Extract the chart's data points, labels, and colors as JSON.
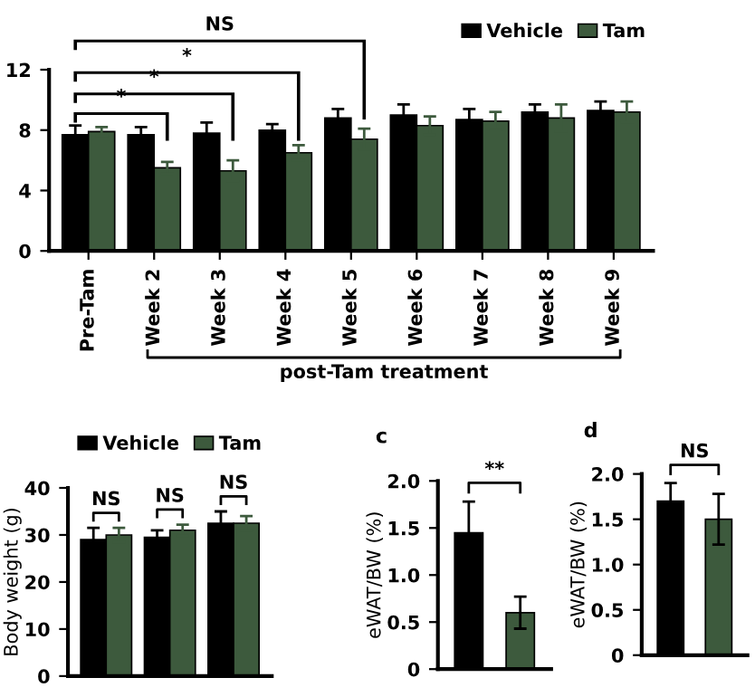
{
  "chart_data": [
    {
      "type": "bar",
      "categories": [
        "Pre-Tam",
        "Week 2",
        "Week 3",
        "Week 4",
        "Week 5",
        "Week 6",
        "Week 7",
        "Week 8",
        "Week 9"
      ],
      "series": [
        {
          "name": "Vehicle",
          "color": "#000000",
          "values": [
            7.7,
            7.7,
            7.8,
            8.0,
            8.8,
            9.0,
            8.7,
            9.2,
            9.3
          ],
          "errors": [
            0.6,
            0.5,
            0.7,
            0.4,
            0.6,
            0.7,
            0.7,
            0.5,
            0.6
          ]
        },
        {
          "name": "Tam",
          "color": "#3d5a3d",
          "values": [
            7.9,
            5.5,
            5.3,
            6.5,
            7.4,
            8.3,
            8.6,
            8.8,
            9.2
          ],
          "errors": [
            0.3,
            0.4,
            0.7,
            0.5,
            0.7,
            0.6,
            0.6,
            0.9,
            0.7
          ]
        }
      ],
      "ylim": [
        0,
        12
      ],
      "yticks": [
        0,
        4,
        8,
        12
      ],
      "legend": "top right",
      "grid": false,
      "annotations": [
        "NS",
        "*",
        "*",
        "*",
        "post-Tam treatment"
      ]
    },
    {
      "type": "bar",
      "categories": [
        null,
        null,
        null
      ],
      "ylabel": "Body weight (g)",
      "series": [
        {
          "name": "Vehicle",
          "color": "#000000",
          "values": [
            29,
            29.5,
            32.5
          ],
          "errors": [
            2.5,
            1.5,
            2.5
          ]
        },
        {
          "name": "Tam",
          "color": "#3d5a3d",
          "values": [
            30,
            31,
            32.5
          ],
          "errors": [
            1.5,
            1.2,
            1.5
          ]
        }
      ],
      "ylim": [
        0,
        40
      ],
      "yticks": [
        0,
        10,
        20,
        30,
        40
      ],
      "legend": "top",
      "tick_labels": "y",
      "grid": false,
      "annotations": [
        "NS",
        "NS",
        "NS"
      ]
    },
    {
      "type": "bar",
      "title": "c",
      "categories": [
        null,
        null
      ],
      "ylabel": "eWAT/BW (%)",
      "values": [
        1.45,
        0.6
      ],
      "colors": [
        "#000000",
        "#3d5a3d"
      ],
      "errors": [
        0.33,
        0.17
      ],
      "ylim": [
        0,
        2.0
      ],
      "yticks": [
        {
          "value": 0,
          "label": "0"
        },
        {
          "value": 0.5,
          "label": "0.5"
        },
        {
          "value": 1.0,
          "label": "1.0"
        },
        {
          "value": 1.5,
          "label": "1.5"
        },
        {
          "value": 2.0,
          "label": "2.0"
        }
      ],
      "tick_labels": "y",
      "grid": false,
      "annotations": [
        "**"
      ]
    },
    {
      "type": "bar",
      "title": "d",
      "categories": [
        null,
        null
      ],
      "ylabel": "eWAT/BW (%)",
      "values": [
        1.7,
        1.5
      ],
      "colors": [
        "#000000",
        "#3d5a3d"
      ],
      "errors": [
        0.2,
        0.28
      ],
      "ylim": [
        0,
        2.0
      ],
      "yticks": [
        {
          "value": 0,
          "label": "0"
        },
        {
          "value": 0.5,
          "label": "0.5"
        },
        {
          "value": 1.0,
          "label": "1.0"
        },
        {
          "value": 1.5,
          "label": "1.5"
        },
        {
          "value": 2.0,
          "label": "2.0"
        }
      ],
      "tick_labels": "y",
      "grid": false,
      "annotations": [
        "NS"
      ]
    }
  ]
}
